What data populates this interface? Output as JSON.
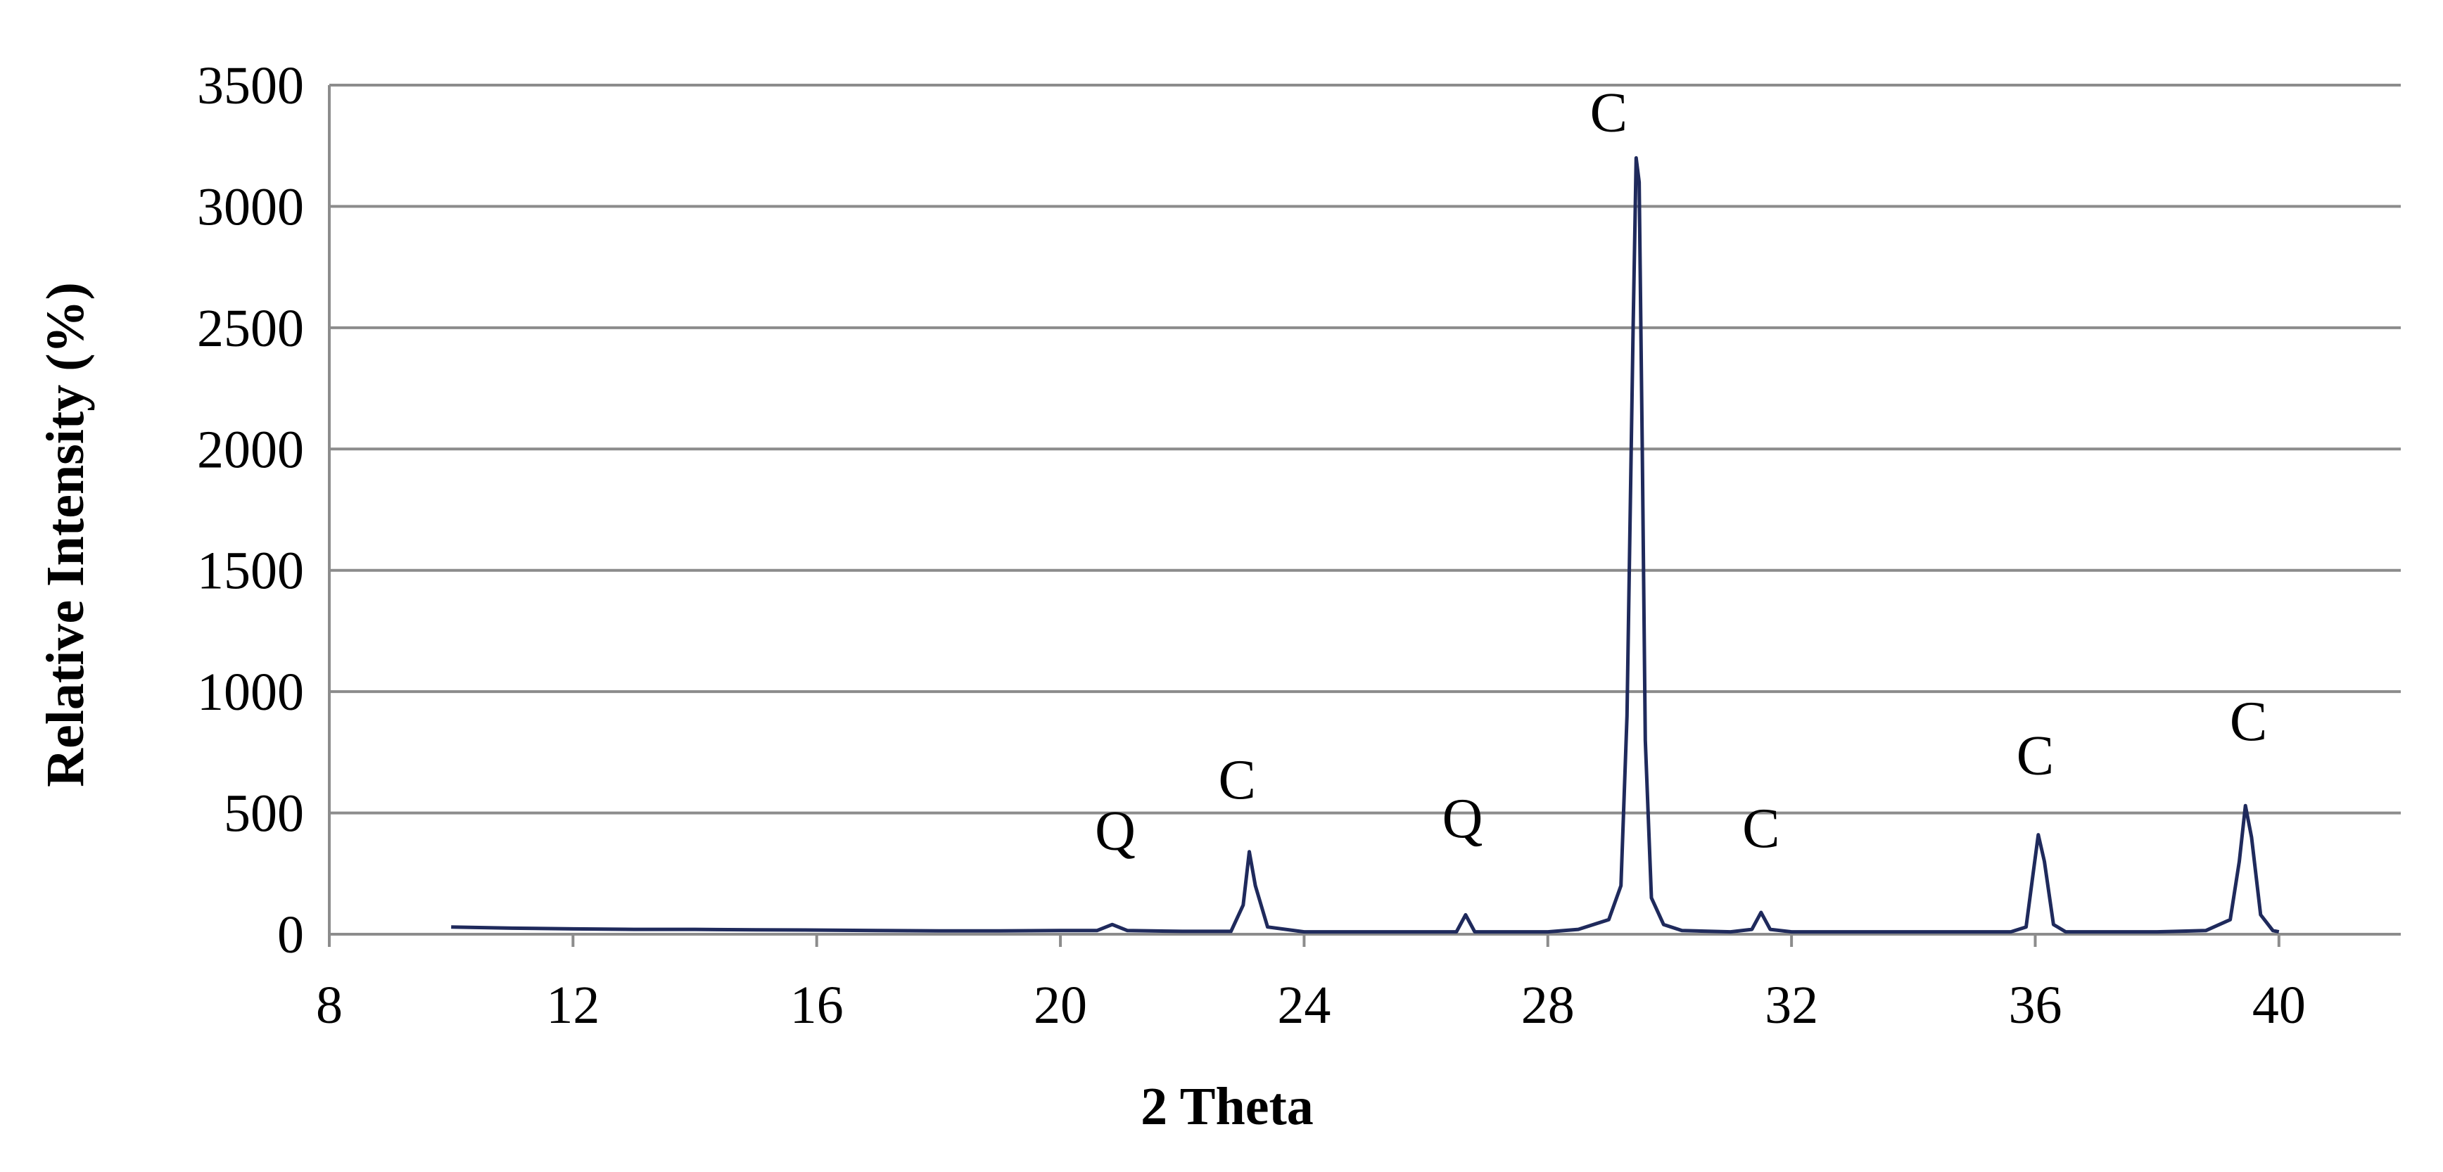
{
  "chart_data": {
    "type": "line",
    "title": "",
    "xlabel": "2 Theta",
    "ylabel": "Relative Intensity (%)",
    "xlim": [
      8,
      42
    ],
    "ylim": [
      0,
      3500
    ],
    "xticks": [
      8,
      12,
      16,
      20,
      24,
      28,
      32,
      36,
      40
    ],
    "yticks": [
      0,
      500,
      1000,
      1500,
      2000,
      2500,
      3000,
      3500
    ],
    "grid": "horizontal",
    "legend": "none",
    "series_color": "#1f2a5c",
    "series": [
      {
        "x": [
          10.0,
          11.0,
          12.0,
          13.0,
          14.0,
          15.0,
          16.0,
          17.0,
          18.0,
          19.0,
          20.0,
          20.6,
          20.85,
          21.1,
          22.0,
          22.8,
          23.0,
          23.1,
          23.2,
          23.4,
          24.0,
          25.0,
          26.0,
          26.5,
          26.65,
          26.8,
          27.5,
          28.0,
          28.5,
          29.0,
          29.2,
          29.3,
          29.4,
          29.45,
          29.5,
          29.55,
          29.6,
          29.7,
          29.9,
          30.2,
          31.0,
          31.35,
          31.5,
          31.65,
          32.0,
          33.0,
          34.0,
          35.0,
          35.6,
          35.85,
          35.95,
          36.05,
          36.15,
          36.3,
          36.5,
          37.0,
          38.0,
          38.8,
          39.2,
          39.35,
          39.45,
          39.55,
          39.7,
          39.9,
          40.0
        ],
        "y": [
          30,
          25,
          22,
          20,
          20,
          18,
          17,
          15,
          14,
          14,
          15,
          15,
          40,
          15,
          12,
          12,
          120,
          340,
          200,
          30,
          10,
          10,
          10,
          10,
          80,
          10,
          10,
          10,
          20,
          60,
          200,
          900,
          2500,
          3200,
          3100,
          2000,
          800,
          150,
          40,
          15,
          10,
          20,
          90,
          20,
          10,
          10,
          10,
          10,
          10,
          30,
          220,
          410,
          300,
          40,
          10,
          10,
          10,
          15,
          60,
          300,
          530,
          400,
          80,
          15,
          10
        ]
      }
    ],
    "annotations": [
      {
        "text": "Q",
        "x": 20.9,
        "y": 350
      },
      {
        "text": "C",
        "x": 22.9,
        "y": 560
      },
      {
        "text": "Q",
        "x": 26.6,
        "y": 400
      },
      {
        "text": "C",
        "x": 29.0,
        "y": 3310
      },
      {
        "text": "C",
        "x": 31.5,
        "y": 360
      },
      {
        "text": "C",
        "x": 36.0,
        "y": 660
      },
      {
        "text": "C",
        "x": 39.5,
        "y": 800
      }
    ]
  }
}
